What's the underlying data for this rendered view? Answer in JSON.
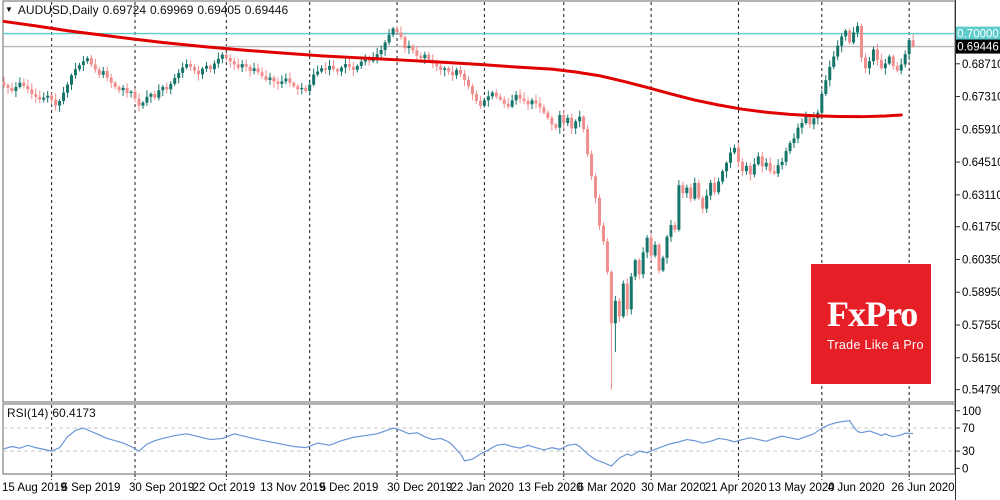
{
  "title": {
    "symbol_period": "AUDUSD,Daily",
    "open": "0.69724",
    "high": "0.69969",
    "low": "0.69405",
    "close": "0.69446"
  },
  "rsi_panel": {
    "name": "RSI(14)",
    "value": "60.4173"
  },
  "logo": {
    "brand": "FxPro",
    "tagline": "Trade Like a Pro",
    "color": "#e61e25"
  },
  "colors": {
    "bull": "#16756b",
    "bear": "#f08d8d",
    "ma": "#e00000",
    "hline_level": "#5ecccc",
    "hline_current": "#b6b6b6",
    "rsi_line": "#6b96d6",
    "grid": "#1a1a1a",
    "level_dash": "#c8c8c8",
    "frame": "#666666",
    "axis_text": "#000000"
  },
  "chart_data": [
    {
      "type": "candlestick",
      "title": "AUDUSD Daily with red moving average",
      "ylim": [
        0.5426,
        0.7135
      ],
      "first_open": 0.6792,
      "closes": [
        0.678,
        0.6768,
        0.6755,
        0.6772,
        0.679,
        0.6776,
        0.6762,
        0.6742,
        0.673,
        0.6718,
        0.6726,
        0.6735,
        0.6718,
        0.6692,
        0.6712,
        0.6748,
        0.6782,
        0.6822,
        0.6848,
        0.6865,
        0.6882,
        0.6895,
        0.6868,
        0.6846,
        0.6824,
        0.684,
        0.6812,
        0.679,
        0.6772,
        0.6758,
        0.6768,
        0.6746,
        0.6752,
        0.6722,
        0.6692,
        0.6705,
        0.673,
        0.6742,
        0.6726,
        0.6758,
        0.6772,
        0.6762,
        0.6785,
        0.681,
        0.6832,
        0.6855,
        0.687,
        0.6858,
        0.6842,
        0.6826,
        0.685,
        0.6862,
        0.6848,
        0.6872,
        0.6892,
        0.691,
        0.6896,
        0.6882,
        0.6868,
        0.6855,
        0.687,
        0.6858,
        0.684,
        0.6852,
        0.6835,
        0.6818,
        0.6802,
        0.6812,
        0.6795,
        0.6785,
        0.6796,
        0.6808,
        0.679,
        0.6775,
        0.6762,
        0.6768,
        0.6755,
        0.6782,
        0.6825,
        0.6838,
        0.6852,
        0.6845,
        0.6862,
        0.6848,
        0.6838,
        0.6855,
        0.687,
        0.6858,
        0.6845,
        0.6862,
        0.688,
        0.6895,
        0.6882,
        0.6898,
        0.6912,
        0.693,
        0.6962,
        0.6995,
        0.7022,
        0.7005,
        0.6985,
        0.6938,
        0.6948,
        0.6928,
        0.6905,
        0.6895,
        0.691,
        0.6888,
        0.6872,
        0.686,
        0.6845,
        0.6852,
        0.6838,
        0.6822,
        0.6845,
        0.6828,
        0.6802,
        0.6775,
        0.6742,
        0.6712,
        0.6692,
        0.6715,
        0.6732,
        0.6748,
        0.673,
        0.6718,
        0.67,
        0.6688,
        0.6715,
        0.6738,
        0.6722,
        0.6712,
        0.6698,
        0.6715,
        0.6702,
        0.6685,
        0.6662,
        0.664,
        0.6612,
        0.6598,
        0.6652,
        0.6618,
        0.664,
        0.6595,
        0.6625,
        0.6645,
        0.6592,
        0.6485,
        0.639,
        0.6298,
        0.618,
        0.6112,
        0.5982,
        0.5762,
        0.5858,
        0.5792,
        0.5932,
        0.5822,
        0.5962,
        0.6032,
        0.5972,
        0.6065,
        0.6128,
        0.6052,
        0.6098,
        0.5988,
        0.6042,
        0.6132,
        0.6182,
        0.6162,
        0.6352,
        0.6318,
        0.6342,
        0.6295,
        0.6362,
        0.6298,
        0.6252,
        0.6308,
        0.6362,
        0.6322,
        0.6368,
        0.6412,
        0.6448,
        0.6492,
        0.6512,
        0.6452,
        0.6412,
        0.6435,
        0.6398,
        0.6442,
        0.6475,
        0.6432,
        0.6448,
        0.6412,
        0.6402,
        0.6438,
        0.6452,
        0.6498,
        0.6532,
        0.6552,
        0.6598,
        0.6618,
        0.6645,
        0.6612,
        0.6638,
        0.6662,
        0.6742,
        0.6801,
        0.6858,
        0.6902,
        0.6948,
        0.6988,
        0.7012,
        0.6962,
        0.7005,
        0.7032,
        0.6898,
        0.6852,
        0.6882,
        0.6932,
        0.6888,
        0.6852,
        0.6872,
        0.6902,
        0.6862,
        0.6842,
        0.6868,
        0.6912,
        0.6972,
        0.6945
      ],
      "wick_overrides": {
        "13": {
          "low": 0.667
        },
        "34": {
          "low": 0.6668
        },
        "98": {
          "high": 0.7029
        },
        "153": {
          "low": 0.5479
        },
        "154": {
          "low": 0.564
        },
        "215": {
          "high": 0.7048
        },
        "229": {
          "high": 0.6997,
          "low": 0.694
        }
      },
      "ma_points": [
        [
          0,
          0.7052
        ],
        [
          8,
          0.7033
        ],
        [
          16,
          0.7012
        ],
        [
          24,
          0.6995
        ],
        [
          32,
          0.6978
        ],
        [
          40,
          0.6962
        ],
        [
          50,
          0.6945
        ],
        [
          60,
          0.693
        ],
        [
          70,
          0.6917
        ],
        [
          80,
          0.6905
        ],
        [
          90,
          0.6896
        ],
        [
          99,
          0.6888
        ],
        [
          110,
          0.6878
        ],
        [
          120,
          0.6868
        ],
        [
          130,
          0.6856
        ],
        [
          138,
          0.6848
        ],
        [
          144,
          0.6836
        ],
        [
          150,
          0.682
        ],
        [
          156,
          0.6796
        ],
        [
          162,
          0.677
        ],
        [
          168,
          0.6742
        ],
        [
          174,
          0.6716
        ],
        [
          180,
          0.6695
        ],
        [
          186,
          0.6677
        ],
        [
          192,
          0.6664
        ],
        [
          198,
          0.6655
        ],
        [
          204,
          0.6649
        ],
        [
          210,
          0.6646
        ],
        [
          216,
          0.6645
        ],
        [
          222,
          0.6648
        ],
        [
          226,
          0.6652
        ]
      ],
      "hlines": [
        {
          "price": 0.7,
          "label": "0.70000",
          "style": "level"
        },
        {
          "price": 0.69446,
          "label": "0.69446",
          "style": "current"
        }
      ],
      "y_tick_labels": [
        "0.68710",
        "0.67310",
        "0.65910",
        "0.64510",
        "0.63110",
        "0.61750",
        "0.60350",
        "0.58950",
        "0.57550",
        "0.56150",
        "0.54790"
      ],
      "month_gridline_days": [
        12,
        33,
        56,
        77,
        99,
        121,
        141,
        163,
        185,
        206,
        228
      ],
      "x_tick_labels": [
        {
          "text": "15 Aug 2019",
          "day": 0
        },
        {
          "text": "6 Sep 2019",
          "day": 15
        },
        {
          "text": "30 Sep 2019",
          "day": 32
        },
        {
          "text": "22 Oct 2019",
          "day": 48
        },
        {
          "text": "13 Nov 2019",
          "day": 65
        },
        {
          "text": "5 Dec 2019",
          "day": 80
        },
        {
          "text": "30 Dec 2019",
          "day": 97
        },
        {
          "text": "22 Jan 2020",
          "day": 113
        },
        {
          "text": "13 Feb 2020",
          "day": 130
        },
        {
          "text": "6 Mar 2020",
          "day": 145
        },
        {
          "text": "30 Mar 2020",
          "day": 161
        },
        {
          "text": "21 Apr 2020",
          "day": 177
        },
        {
          "text": "13 May 2020",
          "day": 193
        },
        {
          "text": "4 Jun 2020",
          "day": 208
        },
        {
          "text": "26 Jun 2020",
          "day": 224
        }
      ]
    },
    {
      "type": "line",
      "title": "RSI(14)",
      "ylim": [
        -8,
        110
      ],
      "levels": [
        70,
        30
      ],
      "y_tick_labels": [
        "100",
        "70",
        "30",
        "0"
      ],
      "points": [
        [
          0,
          34
        ],
        [
          2,
          38
        ],
        [
          4,
          35
        ],
        [
          6,
          40
        ],
        [
          8,
          36
        ],
        [
          10,
          33
        ],
        [
          12,
          30
        ],
        [
          14,
          36
        ],
        [
          16,
          55
        ],
        [
          18,
          66
        ],
        [
          20,
          70
        ],
        [
          22,
          64
        ],
        [
          24,
          58
        ],
        [
          26,
          52
        ],
        [
          28,
          48
        ],
        [
          30,
          44
        ],
        [
          32,
          38
        ],
        [
          34,
          30
        ],
        [
          36,
          42
        ],
        [
          38,
          48
        ],
        [
          40,
          52
        ],
        [
          43,
          57
        ],
        [
          46,
          60
        ],
        [
          49,
          55
        ],
        [
          52,
          50
        ],
        [
          55,
          52
        ],
        [
          58,
          60
        ],
        [
          61,
          55
        ],
        [
          64,
          50
        ],
        [
          67,
          46
        ],
        [
          70,
          42
        ],
        [
          73,
          38
        ],
        [
          76,
          36
        ],
        [
          79,
          44
        ],
        [
          82,
          40
        ],
        [
          85,
          48
        ],
        [
          88,
          54
        ],
        [
          91,
          57
        ],
        [
          94,
          60
        ],
        [
          96,
          65
        ],
        [
          98,
          70
        ],
        [
          100,
          66
        ],
        [
          102,
          60
        ],
        [
          104,
          62
        ],
        [
          106,
          55
        ],
        [
          108,
          50
        ],
        [
          110,
          52
        ],
        [
          112,
          46
        ],
        [
          113,
          40
        ],
        [
          115,
          25
        ],
        [
          116,
          13
        ],
        [
          118,
          16
        ],
        [
          120,
          25
        ],
        [
          122,
          32
        ],
        [
          124,
          40
        ],
        [
          126,
          42
        ],
        [
          128,
          38
        ],
        [
          130,
          35
        ],
        [
          132,
          40
        ],
        [
          134,
          36
        ],
        [
          136,
          32
        ],
        [
          138,
          36
        ],
        [
          140,
          33
        ],
        [
          142,
          40
        ],
        [
          144,
          42
        ],
        [
          145,
          38
        ],
        [
          147,
          25
        ],
        [
          149,
          15
        ],
        [
          151,
          10
        ],
        [
          153,
          4
        ],
        [
          155,
          18
        ],
        [
          157,
          25
        ],
        [
          158,
          22
        ],
        [
          160,
          30
        ],
        [
          162,
          27
        ],
        [
          164,
          33
        ],
        [
          166,
          38
        ],
        [
          168,
          43
        ],
        [
          170,
          46
        ],
        [
          172,
          50
        ],
        [
          174,
          48
        ],
        [
          176,
          44
        ],
        [
          178,
          47
        ],
        [
          180,
          52
        ],
        [
          182,
          50
        ],
        [
          184,
          46
        ],
        [
          186,
          50
        ],
        [
          188,
          53
        ],
        [
          190,
          50
        ],
        [
          192,
          47
        ],
        [
          194,
          52
        ],
        [
          196,
          56
        ],
        [
          198,
          53
        ],
        [
          200,
          50
        ],
        [
          202,
          55
        ],
        [
          204,
          60
        ],
        [
          206,
          70
        ],
        [
          208,
          76
        ],
        [
          210,
          80
        ],
        [
          212,
          82
        ],
        [
          213,
          83
        ],
        [
          214,
          72
        ],
        [
          215,
          64
        ],
        [
          216,
          62
        ],
        [
          218,
          65
        ],
        [
          220,
          60
        ],
        [
          221,
          57
        ],
        [
          222,
          60
        ],
        [
          223,
          57
        ],
        [
          224,
          55
        ],
        [
          226,
          58
        ],
        [
          227,
          61
        ],
        [
          229,
          60.4
        ]
      ]
    }
  ]
}
